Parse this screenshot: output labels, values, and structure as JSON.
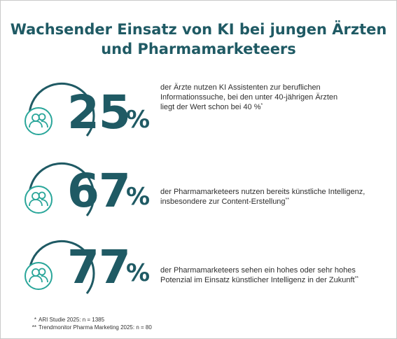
{
  "title": {
    "line1": "Wachsender Einsatz von KI bei jungen Ärzten",
    "line2": "und Pharmamarketeers"
  },
  "accent_color": "#1f5a64",
  "icon_color": "#2aa69a",
  "stats": [
    {
      "number": "25",
      "percent": "%",
      "lines": [
        "der Ärzte nutzen KI Assistenten zur beruflichen",
        "Informationssuche, bei den unter 40-jährigen Ärzten",
        "liegt der Wert schon bei 40 %"
      ],
      "mark": "*",
      "icon": "people-icon"
    },
    {
      "number": "67",
      "percent": "%",
      "lines": [
        "der Pharmamarketeers nutzen bereits künstliche Intelligenz,",
        "insbesondere zur Content-Erstellung"
      ],
      "mark": "**",
      "icon": "people-icon"
    },
    {
      "number": "77",
      "percent": "%",
      "lines": [
        "der Pharmamarketeers sehen ein hohes oder sehr hohes",
        "Potenzial im Einsatz künstlicher Intelligenz in der Zukunft"
      ],
      "mark": "**",
      "icon": "people-icon"
    }
  ],
  "footnotes": [
    {
      "mark": "*",
      "text": "ARI Studie 2025: n = 1385"
    },
    {
      "mark": "**",
      "text": "Trendmonitor Pharma Marketing 2025: n = 80"
    }
  ]
}
